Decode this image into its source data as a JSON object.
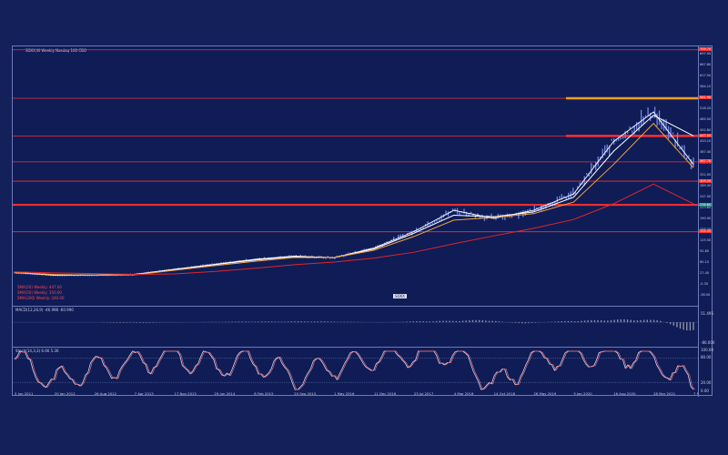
{
  "window": {
    "title": "SOXX,W  Weekly  Nasdaq 100  CBO",
    "legend_main": [
      "SMA(20) Weekly: 447.00",
      "SMA(50) Weekly: 350.00",
      "SMA(200) Weekly: 240.00"
    ],
    "legend_macd": "MACD(12,26,9) -46.998  -60.990",
    "legend_stoch": "Stoch(14,3,3) 6.66  5.36",
    "badge": "SOXX",
    "macd_scale": [
      "51.495",
      "-80.000"
    ],
    "stoch_scale": [
      "100.00",
      "80.00",
      "20.00",
      "0.00"
    ]
  },
  "price_axis": [
    "697.90",
    "667.80",
    "617.50",
    "584.10",
    "551.40",
    "518.20",
    "485.50",
    "452.80",
    "420.10",
    "387.40",
    "354.70",
    "322.00",
    "289.30",
    "247.00",
    "223.60",
    "190.90",
    "158.20",
    "125.50",
    "92.80",
    "60.10",
    "27.40",
    "-5.30",
    "-38.00"
  ],
  "price_tags": [
    "709.70",
    "561.90",
    "447.00",
    "367.70",
    "309.00",
    "236.60",
    "154.50"
  ],
  "time_axis": [
    "5 Jun 2011",
    "20 Jan 2012",
    "26 Aug 2012",
    "7 Apr 2013",
    "17 Nov 2013",
    "29 Jun 2014",
    "8 Feb 2015",
    "20 Sep 2015",
    "1 May 2016",
    "11 Dec 2016",
    "23 Jul 2017",
    "4 Mar 2018",
    "14 Oct 2018",
    "26 May 2019",
    "5 Jan 2020",
    "16 Aug 2020",
    "28 Mar 2021",
    "7 Nov 2021"
  ],
  "colors": {
    "background": "#13205a",
    "plot": "#0f1c56",
    "candles": "#6f86e6",
    "price_line": "#ffffff",
    "sma20": "#ffffff",
    "sma50": "#f5a23a",
    "sma200": "#e1262b",
    "support": "#ff2e2e",
    "highlight": "#ff9f1c",
    "macd": "#8a8fa6",
    "stoch": "#e46a6a"
  },
  "chart_data": [
    {
      "type": "line",
      "x": [
        "5 Jun 2011",
        "20 Jan 2012",
        "26 Aug 2012",
        "7 Apr 2013",
        "17 Nov 2013",
        "29 Jun 2014",
        "8 Feb 2015",
        "20 Sep 2015",
        "1 May 2016",
        "11 Dec 2016",
        "23 Jul 2017",
        "4 Mar 2018",
        "14 Oct 2018",
        "26 May 2019",
        "5 Jan 2020",
        "16 Aug 2020",
        "28 Mar 2021",
        "7 Nov 2021"
      ],
      "series": [
        {
          "name": "price",
          "values": [
            30,
            22,
            22,
            24,
            40,
            55,
            70,
            80,
            75,
            105,
            155,
            220,
            195,
            220,
            270,
            430,
            520,
            360
          ]
        },
        {
          "name": "SMA(20) Weekly",
          "values": [
            30,
            23,
            22,
            24,
            39,
            54,
            68,
            79,
            76,
            102,
            150,
            205,
            200,
            215,
            260,
            400,
            510,
            447
          ]
        },
        {
          "name": "SMA(50) Weekly",
          "values": [
            30,
            24,
            22,
            23,
            37,
            51,
            64,
            76,
            76,
            98,
            140,
            190,
            198,
            210,
            245,
            360,
            485,
            350
          ]
        },
        {
          "name": "SMA(200) Weekly",
          "values": [
            32,
            29,
            27,
            24,
            26,
            33,
            43,
            54,
            62,
            74,
            92,
            118,
            142,
            165,
            192,
            240,
            300,
            240
          ]
        }
      ],
      "ylim": [
        -38.0,
        697.9
      ],
      "horizontal_levels": [
        709.7,
        561.9,
        447.0,
        367.7,
        309.0,
        236.6,
        154.5
      ],
      "grid": false
    },
    {
      "type": "bar",
      "values": [
        -2,
        -3,
        -1,
        1,
        3,
        3,
        4,
        2,
        -1,
        4,
        6,
        10,
        -6,
        3,
        8,
        12,
        9,
        -46.998
      ],
      "ylim": [
        -80.0,
        51.495
      ]
    },
    {
      "type": "line",
      "values": [
        80,
        20,
        55,
        70,
        88,
        60,
        75,
        30,
        60,
        85,
        90,
        92,
        10,
        80,
        90,
        95,
        80,
        6.66
      ],
      "ylim": [
        0.0,
        100.0
      ]
    }
  ]
}
